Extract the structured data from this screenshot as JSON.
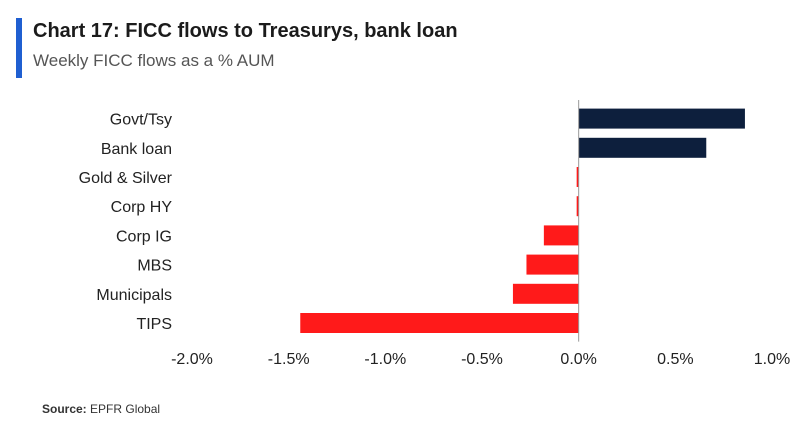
{
  "header": {
    "title": "Chart 17: FICC flows to Treasurys, bank loan",
    "subtitle": "Weekly FICC flows as a % AUM",
    "accent_color": "#1f5fd1"
  },
  "footer": {
    "source_label": "Source:",
    "source_text": "EPFR Global"
  },
  "chart_data": {
    "type": "bar",
    "orientation": "horizontal",
    "categories": [
      "Govt/Tsy",
      "Bank loan",
      "Gold & Silver",
      "Corp HY",
      "Corp IG",
      "MBS",
      "Municipals",
      "TIPS"
    ],
    "values": [
      0.86,
      0.66,
      -0.01,
      -0.01,
      -0.18,
      -0.27,
      -0.34,
      -1.44
    ],
    "unit": "%",
    "xlim": [
      -2.0,
      1.0
    ],
    "xticks": [
      -2.0,
      -1.5,
      -1.0,
      -0.5,
      0.0,
      0.5,
      1.0
    ],
    "xtick_labels": [
      "-2.0%",
      "-1.5%",
      "-1.0%",
      "-0.5%",
      "0.0%",
      "0.5%",
      "1.0%"
    ],
    "grid": false,
    "colors": {
      "positive": "#0d1f3d",
      "negative": "#ff1a1a"
    }
  }
}
